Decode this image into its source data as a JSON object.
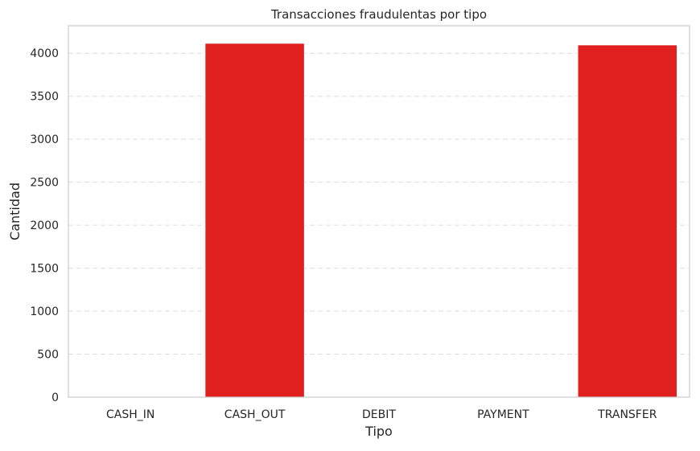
{
  "chart_data": {
    "type": "bar",
    "title": "Transacciones fraudulentas por tipo",
    "xlabel": "Tipo",
    "ylabel": "Cantidad",
    "categories": [
      "CASH_IN",
      "CASH_OUT",
      "DEBIT",
      "PAYMENT",
      "TRANSFER"
    ],
    "values": [
      0,
      4116,
      0,
      0,
      4097
    ],
    "ylim": [
      0,
      4320
    ],
    "yticks": [
      0,
      500,
      1000,
      1500,
      2000,
      2500,
      3000,
      3500,
      4000
    ],
    "bar_color": "#e01f1f",
    "grid": "horizontal-dashed",
    "legend": "none"
  }
}
